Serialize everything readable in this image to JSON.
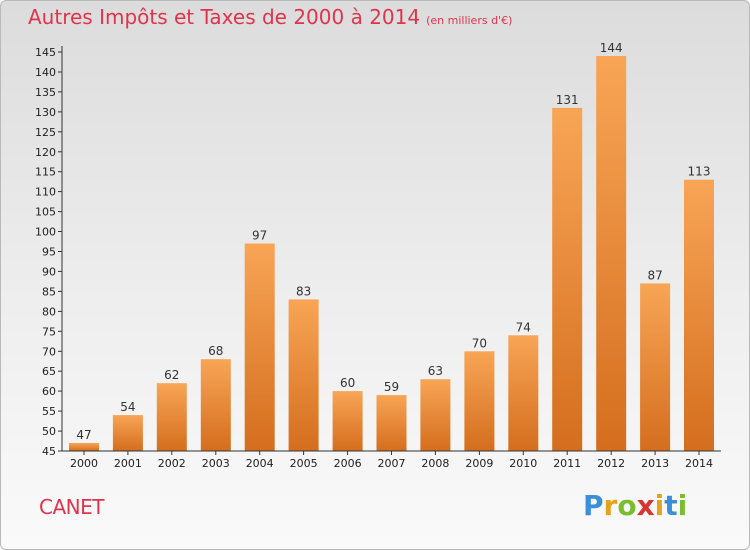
{
  "header": {
    "title": "Autres Impôts et Taxes de 2000 à 2014",
    "unit": "(en milliers d'€)"
  },
  "footer": {
    "commune": "CANET",
    "logo": {
      "letters": [
        "P",
        "r",
        "o",
        "x",
        "i",
        "t",
        "i"
      ],
      "colors": [
        "#3a8fd8",
        "#e5a21b",
        "#7cbd30",
        "#d7352f",
        "#e5a21b",
        "#3a8fd8",
        "#7cbd30"
      ]
    }
  },
  "colors": {
    "bar_light": "#f8a556",
    "bar_dark": "#d46e1e",
    "title": "#e0344c",
    "axis": "#333333"
  },
  "chart_data": {
    "type": "bar",
    "title": "Autres Impôts et Taxes de 2000 à 2014",
    "categories": [
      "2000",
      "2001",
      "2002",
      "2003",
      "2004",
      "2005",
      "2006",
      "2007",
      "2008",
      "2009",
      "2010",
      "2011",
      "2012",
      "2013",
      "2014"
    ],
    "values": [
      47,
      54,
      62,
      68,
      97,
      83,
      60,
      59,
      63,
      70,
      74,
      131,
      144,
      87,
      113
    ],
    "ylim": [
      45,
      145
    ],
    "yticks": [
      45,
      50,
      55,
      60,
      65,
      70,
      75,
      80,
      85,
      90,
      95,
      100,
      105,
      110,
      115,
      120,
      125,
      130,
      135,
      140,
      145
    ],
    "grid": false,
    "legend": "none"
  }
}
